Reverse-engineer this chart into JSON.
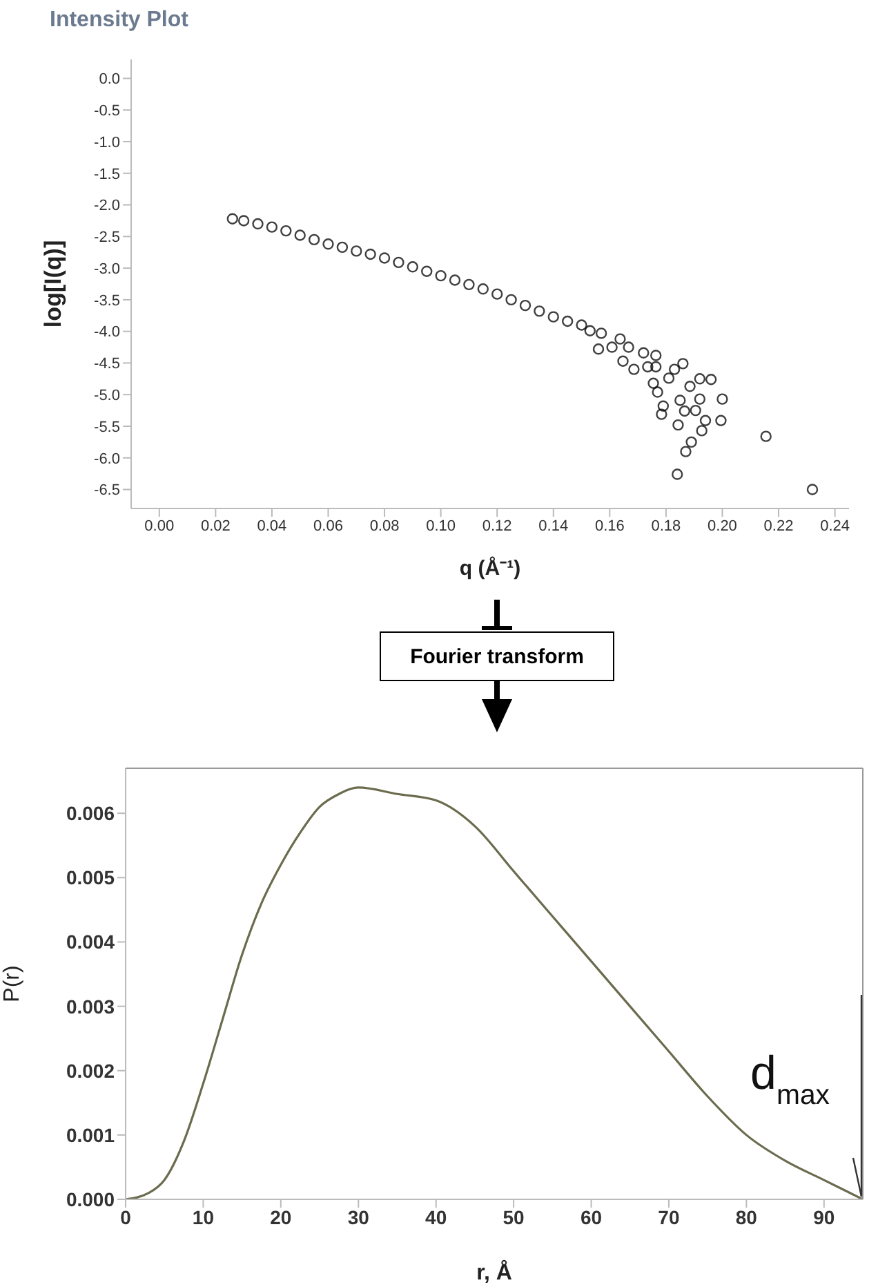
{
  "chart_data": [
    {
      "type": "scatter",
      "title": "Intensity Plot",
      "xlabel": "q (Å⁻¹)",
      "ylabel": "log[I(q)]",
      "color": "#000000",
      "marker": "circle",
      "x": [
        0.026,
        0.03,
        0.035,
        0.04,
        0.045,
        0.05,
        0.055,
        0.06,
        0.065,
        0.07,
        0.075,
        0.08,
        0.085,
        0.09,
        0.095,
        0.1,
        0.105,
        0.11,
        0.115,
        0.12,
        0.125,
        0.13,
        0.135,
        0.14,
        0.145,
        0.15,
        0.153,
        0.157,
        0.156,
        0.1608,
        0.1637,
        0.1647,
        0.1667,
        0.1686,
        0.172,
        0.1735,
        0.1764,
        0.1764,
        0.177,
        0.1755,
        0.181,
        0.183,
        0.1784,
        0.179,
        0.185,
        0.1885,
        0.1866,
        0.1843,
        0.184,
        0.186,
        0.187,
        0.189,
        0.1905,
        0.192,
        0.1927,
        0.194,
        0.192,
        0.196,
        0.1995,
        0.2,
        0.2155,
        0.232
      ],
      "values": [
        -2.22,
        -2.25,
        -2.3,
        -2.35,
        -2.41,
        -2.48,
        -2.55,
        -2.62,
        -2.67,
        -2.73,
        -2.78,
        -2.84,
        -2.91,
        -2.98,
        -3.05,
        -3.12,
        -3.19,
        -3.26,
        -3.33,
        -3.41,
        -3.5,
        -3.59,
        -3.68,
        -3.77,
        -3.84,
        -3.9,
        -3.99,
        -4.03,
        -4.28,
        -4.25,
        -4.12,
        -4.47,
        -4.25,
        -4.6,
        -4.34,
        -4.56,
        -4.38,
        -4.56,
        -4.96,
        -4.82,
        -4.74,
        -4.6,
        -5.31,
        -5.18,
        -5.09,
        -4.87,
        -5.26,
        -5.48,
        -6.26,
        -4.51,
        -5.9,
        -5.75,
        -5.25,
        -5.07,
        -5.57,
        -5.41,
        -4.75,
        -4.76,
        -5.41,
        -5.07,
        -5.66,
        -6.5
      ],
      "xlim": [
        -0.01,
        0.245
      ],
      "ylim": [
        -6.8,
        0.3
      ],
      "xticks": [
        {
          "value": 0,
          "label": "0.00"
        },
        {
          "value": 0.02,
          "label": "0.02"
        },
        {
          "value": 0.04,
          "label": "0.04"
        },
        {
          "value": 0.06,
          "label": "0.06"
        },
        {
          "value": 0.08,
          "label": "0.08"
        },
        {
          "value": 0.1,
          "label": "0.10"
        },
        {
          "value": 0.12,
          "label": "0.12"
        },
        {
          "value": 0.14,
          "label": "0.14"
        },
        {
          "value": 0.16,
          "label": "0.16"
        },
        {
          "value": 0.18,
          "label": "0.18"
        },
        {
          "value": 0.2,
          "label": "0.20"
        },
        {
          "value": 0.22,
          "label": "0.22"
        },
        {
          "value": 0.24,
          "label": "0.24"
        }
      ],
      "yticks": [
        {
          "value": 0,
          "label": "0.0"
        },
        {
          "value": -0.5,
          "label": "-0.5"
        },
        {
          "value": -1,
          "label": "-1.0"
        },
        {
          "value": -1.5,
          "label": "-1.5"
        },
        {
          "value": -2,
          "label": "-2.0"
        },
        {
          "value": -2.5,
          "label": "-2.5"
        },
        {
          "value": -3,
          "label": "-3.0"
        },
        {
          "value": -3.5,
          "label": "-3.5"
        },
        {
          "value": -4,
          "label": "-4.0"
        },
        {
          "value": -4.5,
          "label": "-4.5"
        },
        {
          "value": -5,
          "label": "-5.0"
        },
        {
          "value": -5.5,
          "label": "-5.5"
        },
        {
          "value": -6,
          "label": "-6.0"
        },
        {
          "value": -6.5,
          "label": "-6.5"
        }
      ]
    },
    {
      "type": "line",
      "xlabel": "r, Å",
      "ylabel": "P(r)",
      "color": "#6b6b4e",
      "marker": "none",
      "x": [
        0,
        3,
        5,
        7.5,
        10,
        12.5,
        15,
        17.5,
        20,
        22.5,
        25,
        27.5,
        30,
        35,
        40,
        45,
        50,
        55,
        60,
        65,
        70,
        75,
        80,
        85,
        90,
        95
      ],
      "values": [
        0,
        0.0001,
        0.0003,
        0.0009,
        0.0018,
        0.0028,
        0.0038,
        0.0046,
        0.0052,
        0.0057,
        0.0061,
        0.0063,
        0.0064,
        0.0063,
        0.0062,
        0.0058,
        0.0051,
        0.0044,
        0.0037,
        0.003,
        0.0023,
        0.0016,
        0.001,
        0.0006,
        0.0003,
        0
      ],
      "xlim": [
        0,
        95
      ],
      "ylim": [
        0,
        0.0067
      ],
      "xticks": [
        0,
        10,
        20,
        30,
        40,
        50,
        60,
        70,
        80,
        90
      ],
      "yticks": [
        {
          "value": 0,
          "label": "0.000"
        },
        {
          "value": 0.001,
          "label": "0.001"
        },
        {
          "value": 0.002,
          "label": "0.002"
        },
        {
          "value": 0.003,
          "label": "0.003"
        },
        {
          "value": 0.004,
          "label": "0.004"
        },
        {
          "value": 0.005,
          "label": "0.005"
        },
        {
          "value": 0.006,
          "label": "0.006"
        }
      ],
      "annotations": [
        "Fourier transform",
        {
          "text": "d$_{max}$",
          "x": 95,
          "y": 0
        }
      ]
    }
  ]
}
